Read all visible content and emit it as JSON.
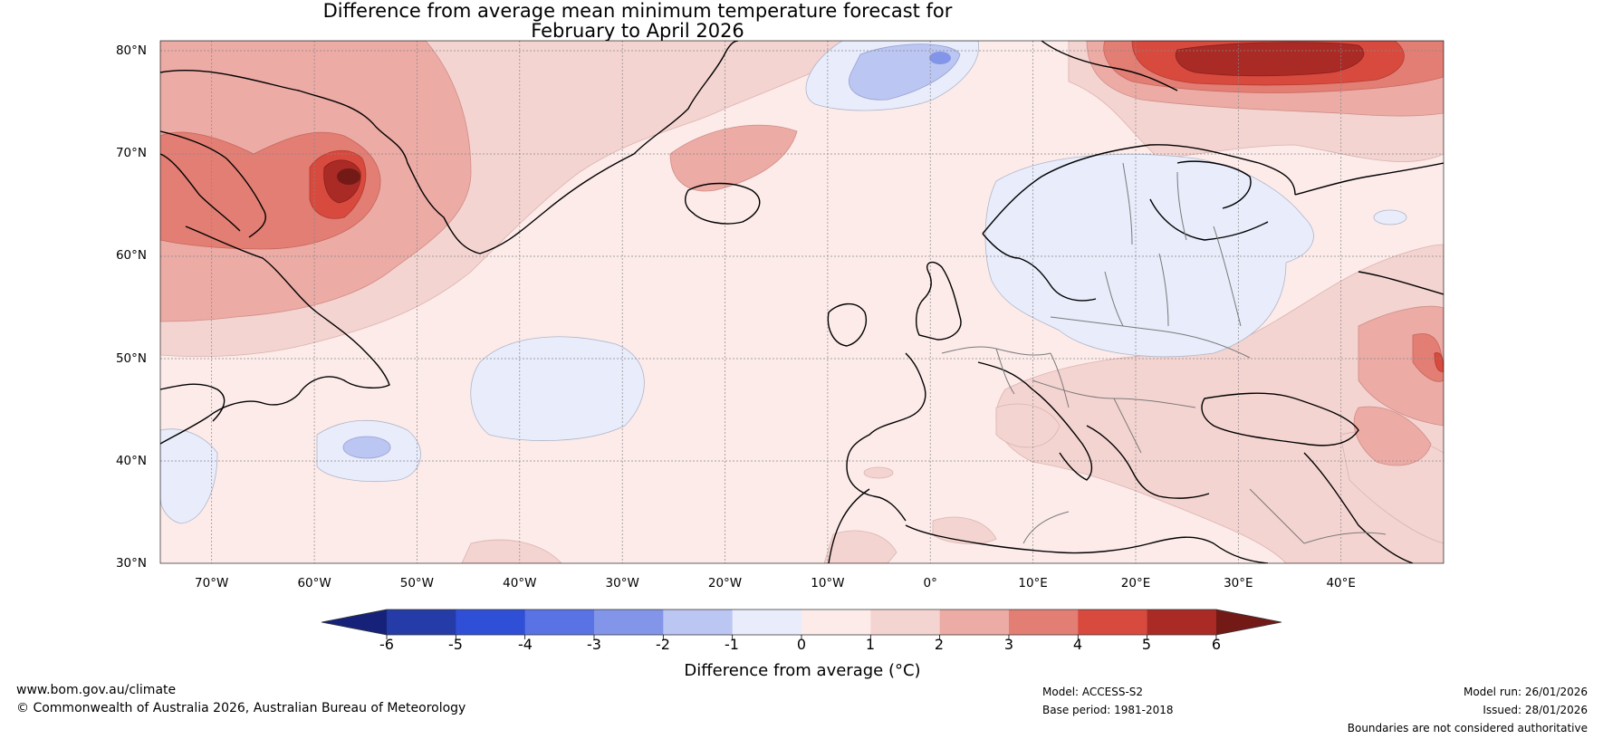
{
  "title": {
    "line1": "Difference from average mean minimum temperature forecast for",
    "line2": "February to April 2026"
  },
  "map": {
    "lat_labels": [
      "80°N",
      "70°N",
      "60°N",
      "50°N",
      "40°N",
      "30°N"
    ],
    "lat_values": [
      80,
      70,
      60,
      50,
      40,
      30
    ],
    "lon_labels": [
      "70°W",
      "60°W",
      "50°W",
      "40°W",
      "30°W",
      "20°W",
      "10°W",
      "0°",
      "10°E",
      "20°E",
      "30°E",
      "40°E"
    ],
    "lon_values": [
      -70,
      -60,
      -50,
      -40,
      -30,
      -20,
      -10,
      0,
      10,
      20,
      30,
      40
    ],
    "extent": {
      "lon_min": -75,
      "lon_max": 50,
      "lat_min": 30,
      "lat_max": 81
    }
  },
  "colorbar": {
    "levels": [
      "-6",
      "-5",
      "-4",
      "-3",
      "-2",
      "-1",
      "0",
      "1",
      "2",
      "3",
      "4",
      "5",
      "6"
    ],
    "colors": [
      "#243ba8",
      "#2f4fd6",
      "#5a73e4",
      "#8395e8",
      "#bcc6f2",
      "#e8ecfb",
      "#fcebe9",
      "#f4d4d1",
      "#ecaba5",
      "#e27e74",
      "#d84a3e",
      "#aa2a26"
    ],
    "under_color": "#16227a",
    "over_color": "#731a17",
    "label": "Difference from average (°C)"
  },
  "footer": {
    "website": "www.bom.gov.au/climate",
    "copyright": "© Commonwealth of Australia 2026, Australian Bureau of Meteorology",
    "model": "Model: ACCESS-S2",
    "base_period": "Base period: 1981-2018",
    "model_run": "Model run: 26/01/2026",
    "issued": "Issued: 28/01/2026",
    "disclaimer": "Boundaries are not considered authoritative"
  }
}
